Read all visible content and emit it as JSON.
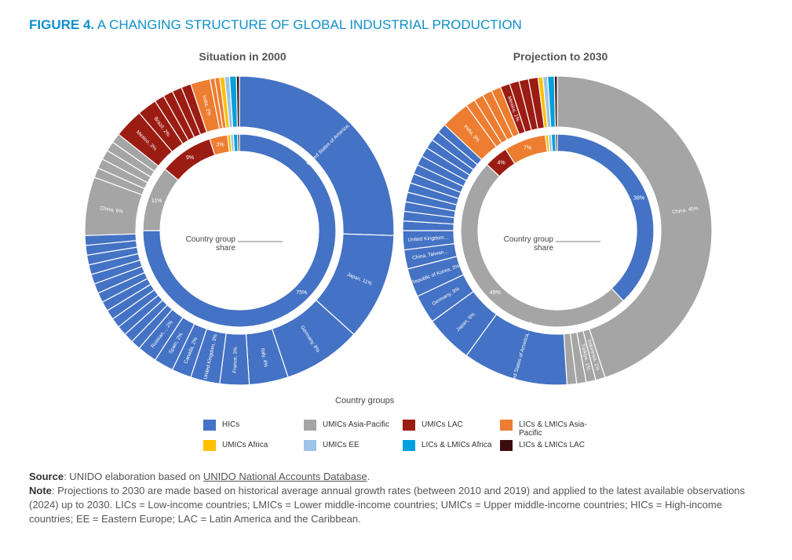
{
  "figure": {
    "label": "FIGURE 4.",
    "title": "A CHANGING STRUCTURE OF GLOBAL INDUSTRIAL PRODUCTION"
  },
  "colors": {
    "HICs": "#4472c4",
    "UMICs Asia-Pacific": "#a5a5a5",
    "UMICs LAC": "#9b1c13",
    "LICs & LMICs Asia-Pacific": "#ed7d31",
    "UMICs Africa": "#ffc000",
    "UMICs EE": "#9dc3e6",
    "LICs & LMICs Africa": "#00a0dc",
    "LICs & LMICs LAC": "#3d0c0c"
  },
  "legend": {
    "title": "Country groups",
    "items": [
      {
        "label": "HICs",
        "color": "#4472c4"
      },
      {
        "label": "UMICs Asia-Pacific",
        "color": "#a5a5a5"
      },
      {
        "label": "UMICs LAC",
        "color": "#9b1c13"
      },
      {
        "label": "LICs & LMICs Asia-Pacific",
        "color": "#ed7d31"
      },
      {
        "label": "UMICs Africa",
        "color": "#ffc000"
      },
      {
        "label": "UMICs EE",
        "color": "#9dc3e6"
      },
      {
        "label": "LICs & LMICs Africa",
        "color": "#00a0dc"
      },
      {
        "label": "LICs & LMICs LAC",
        "color": "#3d0c0c"
      }
    ]
  },
  "chart_data": [
    {
      "type": "pie",
      "title": "Situation in 2000",
      "center_label": "Country group share",
      "inner_ring": [
        {
          "group": "HICs",
          "value": 75,
          "label": "75%"
        },
        {
          "group": "UMICs Asia-Pacific",
          "value": 11,
          "label": "11%"
        },
        {
          "group": "UMICs LAC",
          "value": 9,
          "label": "9%"
        },
        {
          "group": "LICs & LMICs Asia-Pacific",
          "value": 3,
          "label": "3%"
        },
        {
          "group": "UMICs Africa",
          "value": 0.5,
          "label": ""
        },
        {
          "group": "UMICs EE",
          "value": 0.5,
          "label": ""
        },
        {
          "group": "LICs & LMICs Africa",
          "value": 0.7,
          "label": ""
        },
        {
          "group": "LICs & LMICs LAC",
          "value": 0.3,
          "label": ""
        }
      ],
      "outer_ring": [
        {
          "group": "HICs",
          "value": 25,
          "label": "United States of America, 25%"
        },
        {
          "group": "HICs",
          "value": 11,
          "label": "Japan, 11%"
        },
        {
          "group": "HICs",
          "value": 8,
          "label": "Germany, 8%"
        },
        {
          "group": "HICs",
          "value": 4,
          "label": "Italy, 4%"
        },
        {
          "group": "HICs",
          "value": 3,
          "label": "France, 3%"
        },
        {
          "group": "HICs",
          "value": 3,
          "label": "United Kingdom, 3%"
        },
        {
          "group": "HICs",
          "value": 2,
          "label": "Canada, 2%"
        },
        {
          "group": "HICs",
          "value": 2,
          "label": "Spain, 2%"
        },
        {
          "group": "HICs",
          "value": 2,
          "label": "Russian..., 2%"
        },
        {
          "group": "HICs",
          "value": 1,
          "label": ""
        },
        {
          "group": "HICs",
          "value": 1,
          "label": ""
        },
        {
          "group": "HICs",
          "value": 1,
          "label": ""
        },
        {
          "group": "HICs",
          "value": 1,
          "label": ""
        },
        {
          "group": "HICs",
          "value": 1,
          "label": ""
        },
        {
          "group": "HICs",
          "value": 1,
          "label": ""
        },
        {
          "group": "HICs",
          "value": 1,
          "label": ""
        },
        {
          "group": "HICs",
          "value": 1,
          "label": ""
        },
        {
          "group": "HICs",
          "value": 1,
          "label": ""
        },
        {
          "group": "HICs",
          "value": 1,
          "label": ""
        },
        {
          "group": "HICs",
          "value": 1,
          "label": ""
        },
        {
          "group": "HICs",
          "value": 1,
          "label": ""
        },
        {
          "group": "HICs",
          "value": 1,
          "label": ""
        },
        {
          "group": "UMICs Asia-Pacific",
          "value": 6,
          "label": "China, 6%"
        },
        {
          "group": "UMICs Asia-Pacific",
          "value": 1,
          "label": ""
        },
        {
          "group": "UMICs Asia-Pacific",
          "value": 1,
          "label": ""
        },
        {
          "group": "UMICs Asia-Pacific",
          "value": 1,
          "label": ""
        },
        {
          "group": "UMICs Asia-Pacific",
          "value": 1,
          "label": ""
        },
        {
          "group": "UMICs Asia-Pacific",
          "value": 1,
          "label": ""
        },
        {
          "group": "UMICs LAC",
          "value": 3,
          "label": "Mexico, 3%"
        },
        {
          "group": "UMICs LAC",
          "value": 2,
          "label": "Brazil, 2%"
        },
        {
          "group": "UMICs LAC",
          "value": 1,
          "label": ""
        },
        {
          "group": "UMICs LAC",
          "value": 1,
          "label": ""
        },
        {
          "group": "UMICs LAC",
          "value": 1,
          "label": ""
        },
        {
          "group": "UMICs LAC",
          "value": 1,
          "label": ""
        },
        {
          "group": "LICs & LMICs Asia-Pacific",
          "value": 2,
          "label": "India, 2%"
        },
        {
          "group": "LICs & LMICs Asia-Pacific",
          "value": 0.5,
          "label": ""
        },
        {
          "group": "LICs & LMICs Asia-Pacific",
          "value": 0.5,
          "label": ""
        },
        {
          "group": "UMICs Africa",
          "value": 0.5,
          "label": ""
        },
        {
          "group": "UMICs EE",
          "value": 0.5,
          "label": ""
        },
        {
          "group": "LICs & LMICs Africa",
          "value": 0.7,
          "label": ""
        },
        {
          "group": "LICs & LMICs LAC",
          "value": 0.3,
          "label": ""
        }
      ]
    },
    {
      "type": "pie",
      "title": "Projection to 2030",
      "center_label": "Country group share",
      "inner_ring": [
        {
          "group": "HICs",
          "value": 38,
          "label": "38%"
        },
        {
          "group": "UMICs Asia-Pacific",
          "value": 49,
          "label": "49%"
        },
        {
          "group": "UMICs LAC",
          "value": 4,
          "label": "4%"
        },
        {
          "group": "LICs & LMICs Asia-Pacific",
          "value": 7,
          "label": "7%"
        },
        {
          "group": "UMICs Africa",
          "value": 0.5,
          "label": ""
        },
        {
          "group": "UMICs EE",
          "value": 0.5,
          "label": ""
        },
        {
          "group": "LICs & LMICs Africa",
          "value": 0.7,
          "label": ""
        },
        {
          "group": "LICs & LMICs LAC",
          "value": 0.3,
          "label": ""
        }
      ],
      "outer_ring": [
        {
          "group": "UMICs Asia-Pacific",
          "value": 45,
          "label": "China, 45%"
        },
        {
          "group": "UMICs Asia-Pacific",
          "value": 1,
          "label": "Indonesia, 1%"
        },
        {
          "group": "UMICs Asia-Pacific",
          "value": 1,
          "label": "Türkiye, 1%"
        },
        {
          "group": "UMICs Asia-Pacific",
          "value": 1,
          "label": ""
        },
        {
          "group": "UMICs Asia-Pacific",
          "value": 1,
          "label": ""
        },
        {
          "group": "HICs",
          "value": 11,
          "label": "United States of America, 11%"
        },
        {
          "group": "HICs",
          "value": 5,
          "label": "Japan, 5%"
        },
        {
          "group": "HICs",
          "value": 3,
          "label": "Germany, 3%"
        },
        {
          "group": "HICs",
          "value": 3,
          "label": "Republic of Korea, 3%"
        },
        {
          "group": "HICs",
          "value": 2,
          "label": "China, Taiwan..."
        },
        {
          "group": "HICs",
          "value": 2,
          "label": "United Kingdom..."
        },
        {
          "group": "HICs",
          "value": 1,
          "label": ""
        },
        {
          "group": "HICs",
          "value": 1,
          "label": ""
        },
        {
          "group": "HICs",
          "value": 1,
          "label": ""
        },
        {
          "group": "HICs",
          "value": 1,
          "label": ""
        },
        {
          "group": "HICs",
          "value": 1,
          "label": ""
        },
        {
          "group": "HICs",
          "value": 1,
          "label": ""
        },
        {
          "group": "HICs",
          "value": 1,
          "label": ""
        },
        {
          "group": "HICs",
          "value": 1,
          "label": ""
        },
        {
          "group": "HICs",
          "value": 1,
          "label": ""
        },
        {
          "group": "HICs",
          "value": 1,
          "label": ""
        },
        {
          "group": "HICs",
          "value": 1,
          "label": ""
        },
        {
          "group": "HICs",
          "value": 1,
          "label": ""
        },
        {
          "group": "LICs & LMICs Asia-Pacific",
          "value": 3,
          "label": "India, 3%"
        },
        {
          "group": "LICs & LMICs Asia-Pacific",
          "value": 1,
          "label": ""
        },
        {
          "group": "LICs & LMICs Asia-Pacific",
          "value": 1,
          "label": ""
        },
        {
          "group": "LICs & LMICs Asia-Pacific",
          "value": 1,
          "label": ""
        },
        {
          "group": "LICs & LMICs Asia-Pacific",
          "value": 1,
          "label": ""
        },
        {
          "group": "UMICs LAC",
          "value": 1,
          "label": "Mexico, 1%"
        },
        {
          "group": "UMICs LAC",
          "value": 1,
          "label": ""
        },
        {
          "group": "UMICs LAC",
          "value": 1,
          "label": ""
        },
        {
          "group": "UMICs LAC",
          "value": 1,
          "label": ""
        },
        {
          "group": "UMICs Africa",
          "value": 0.5,
          "label": ""
        },
        {
          "group": "UMICs EE",
          "value": 0.5,
          "label": ""
        },
        {
          "group": "LICs & LMICs Africa",
          "value": 0.7,
          "label": ""
        },
        {
          "group": "LICs & LMICs LAC",
          "value": 0.3,
          "label": ""
        }
      ]
    }
  ],
  "notes": {
    "source_label": "Source",
    "source_text": ": UNIDO elaboration based on ",
    "source_link": "UNIDO National Accounts Database",
    "source_end": ".",
    "note_label": "Note",
    "note_text": ": Projections to 2030 are made based on historical average annual growth rates (between 2010 and 2019) and applied to the latest available observations (2024) up to 2030. LICs = Low-income countries; LMICs = Lower middle-income countries; UMICs = Upper middle-income countries; HICs = High-income countries; EE = Eastern Europe; LAC = Latin America and the Caribbean."
  }
}
